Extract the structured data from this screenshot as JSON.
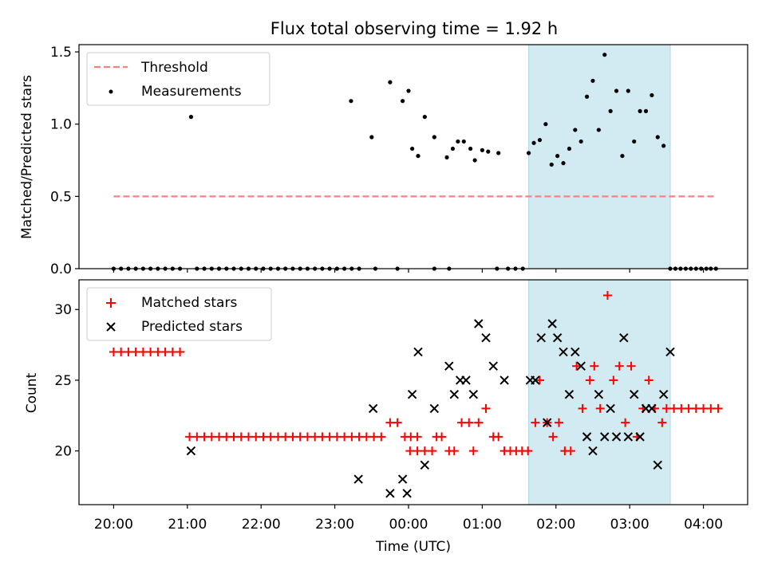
{
  "figure_title": "Flux total observing time = 1.92 h",
  "colors": {
    "threshold": "#ff7f7f",
    "measurements": "#000000",
    "matched": "#ff0000",
    "predicted": "#000000",
    "highlight": "#add8e6"
  },
  "chart_data": [
    {
      "type": "scatter",
      "title": "Flux total observing time = 1.92 h",
      "ylabel": "Matched/Predicted stars",
      "xlabel": "",
      "x_unit": "hours since 20:00 UTC",
      "xlim": [
        -0.47,
        8.6
      ],
      "ylim": [
        0,
        1.55
      ],
      "yticks": [
        0.0,
        0.5,
        1.0,
        1.5
      ],
      "ytick_labels": [
        "0.0",
        "0.5",
        "1.0",
        "1.5"
      ],
      "xticks": [
        0,
        1,
        2,
        3,
        4,
        5,
        6,
        7,
        8
      ],
      "highlight_span": [
        5.63,
        7.55
      ],
      "legend": {
        "position": "upper-left",
        "entries": [
          "Threshold",
          "Measurements"
        ]
      },
      "threshold": {
        "name": "Threshold",
        "value": 0.5,
        "x_range": [
          0,
          8.17
        ]
      },
      "series": [
        {
          "name": "Measurements",
          "points": [
            [
              0,
              0
            ],
            [
              0.1,
              0
            ],
            [
              0.2,
              0
            ],
            [
              0.3,
              0
            ],
            [
              0.4,
              0
            ],
            [
              0.5,
              0
            ],
            [
              0.6,
              0
            ],
            [
              0.7,
              0
            ],
            [
              0.8,
              0
            ],
            [
              0.9,
              0
            ],
            [
              1.05,
              1.05
            ],
            [
              1.13,
              0
            ],
            [
              1.23,
              0
            ],
            [
              1.33,
              0
            ],
            [
              1.43,
              0
            ],
            [
              1.53,
              0
            ],
            [
              1.63,
              0
            ],
            [
              1.73,
              0
            ],
            [
              1.83,
              0
            ],
            [
              1.93,
              0
            ],
            [
              2.03,
              0
            ],
            [
              2.13,
              0
            ],
            [
              2.23,
              0
            ],
            [
              2.33,
              0
            ],
            [
              2.43,
              0
            ],
            [
              2.53,
              0
            ],
            [
              2.63,
              0
            ],
            [
              2.73,
              0
            ],
            [
              2.83,
              0
            ],
            [
              2.93,
              0
            ],
            [
              3.03,
              0
            ],
            [
              3.13,
              0
            ],
            [
              3.23,
              0
            ],
            [
              3.33,
              0
            ],
            [
              3.22,
              1.16
            ],
            [
              3.5,
              0.91
            ],
            [
              3.75,
              1.29
            ],
            [
              3.92,
              1.16
            ],
            [
              4.0,
              1.23
            ],
            [
              4.05,
              0.83
            ],
            [
              4.13,
              0.78
            ],
            [
              4.22,
              1.05
            ],
            [
              4.35,
              0.91
            ],
            [
              4.52,
              0.77
            ],
            [
              4.6,
              0.83
            ],
            [
              4.67,
              0.88
            ],
            [
              4.75,
              0.88
            ],
            [
              4.84,
              0.83
            ],
            [
              4.9,
              0.75
            ],
            [
              5.0,
              0.82
            ],
            [
              5.08,
              0.81
            ],
            [
              5.22,
              0.8
            ],
            [
              5.63,
              0.8
            ],
            [
              5.7,
              0.87
            ],
            [
              5.78,
              0.89
            ],
            [
              5.86,
              1.0
            ],
            [
              5.94,
              0.72
            ],
            [
              6.02,
              0.78
            ],
            [
              6.1,
              0.73
            ],
            [
              6.18,
              0.83
            ],
            [
              6.26,
              0.96
            ],
            [
              6.34,
              0.88
            ],
            [
              6.42,
              1.19
            ],
            [
              6.5,
              1.3
            ],
            [
              6.58,
              0.96
            ],
            [
              6.66,
              1.48
            ],
            [
              6.74,
              1.09
            ],
            [
              6.82,
              1.23
            ],
            [
              6.9,
              0.78
            ],
            [
              6.98,
              1.23
            ],
            [
              7.06,
              0.88
            ],
            [
              7.14,
              1.09
            ],
            [
              7.22,
              1.09
            ],
            [
              7.3,
              1.2
            ],
            [
              7.38,
              0.91
            ],
            [
              7.46,
              0.85
            ],
            [
              3.55,
              0
            ],
            [
              3.85,
              0
            ],
            [
              4.35,
              0
            ],
            [
              4.55,
              0
            ],
            [
              5.2,
              0
            ],
            [
              5.35,
              0
            ],
            [
              5.45,
              0
            ],
            [
              5.55,
              0
            ],
            [
              7.55,
              0
            ],
            [
              7.62,
              0
            ],
            [
              7.69,
              0
            ],
            [
              7.76,
              0
            ],
            [
              7.83,
              0
            ],
            [
              7.9,
              0
            ],
            [
              7.97,
              0
            ],
            [
              8.04,
              0
            ],
            [
              8.1,
              0
            ],
            [
              8.17,
              0
            ]
          ]
        }
      ]
    },
    {
      "type": "scatter",
      "title": "",
      "ylabel": "Count",
      "xlabel": "Time (UTC)",
      "x_unit": "hours since 20:00 UTC",
      "xlim": [
        -0.47,
        8.6
      ],
      "ylim": [
        16.2,
        32.1
      ],
      "yticks": [
        20,
        25,
        30
      ],
      "ytick_labels": [
        "20",
        "25",
        "30"
      ],
      "xticks": [
        0,
        1,
        2,
        3,
        4,
        5,
        6,
        7,
        8
      ],
      "xtick_labels": [
        "20:00",
        "21:00",
        "22:00",
        "23:00",
        "00:00",
        "01:00",
        "02:00",
        "03:00",
        "04:00"
      ],
      "highlight_span": [
        5.63,
        7.55
      ],
      "legend": {
        "position": "upper-left",
        "entries": [
          "Matched stars",
          "Predicted stars"
        ]
      },
      "series": [
        {
          "name": "Matched stars",
          "marker": "+",
          "points": [
            [
              0,
              27
            ],
            [
              0.1,
              27
            ],
            [
              0.2,
              27
            ],
            [
              0.3,
              27
            ],
            [
              0.4,
              27
            ],
            [
              0.5,
              27
            ],
            [
              0.6,
              27
            ],
            [
              0.7,
              27
            ],
            [
              0.8,
              27
            ],
            [
              0.9,
              27
            ],
            [
              1.03,
              21
            ],
            [
              1.13,
              21
            ],
            [
              1.23,
              21
            ],
            [
              1.33,
              21
            ],
            [
              1.43,
              21
            ],
            [
              1.53,
              21
            ],
            [
              1.63,
              21
            ],
            [
              1.73,
              21
            ],
            [
              1.83,
              21
            ],
            [
              1.93,
              21
            ],
            [
              2.03,
              21
            ],
            [
              2.13,
              21
            ],
            [
              2.23,
              21
            ],
            [
              2.33,
              21
            ],
            [
              2.43,
              21
            ],
            [
              2.53,
              21
            ],
            [
              2.63,
              21
            ],
            [
              2.73,
              21
            ],
            [
              2.83,
              21
            ],
            [
              2.93,
              21
            ],
            [
              3.03,
              21
            ],
            [
              3.13,
              21
            ],
            [
              3.23,
              21
            ],
            [
              3.33,
              21
            ],
            [
              3.43,
              21
            ],
            [
              3.53,
              21
            ],
            [
              3.63,
              21
            ],
            [
              3.75,
              22
            ],
            [
              3.85,
              22
            ],
            [
              3.95,
              21
            ],
            [
              4.03,
              21
            ],
            [
              4.02,
              20
            ],
            [
              4.12,
              21
            ],
            [
              4.12,
              20
            ],
            [
              4.22,
              20
            ],
            [
              4.32,
              20
            ],
            [
              4.38,
              21
            ],
            [
              4.45,
              21
            ],
            [
              4.55,
              20
            ],
            [
              4.62,
              20
            ],
            [
              4.72,
              22
            ],
            [
              4.82,
              22
            ],
            [
              4.88,
              20
            ],
            [
              4.95,
              22
            ],
            [
              5.05,
              23
            ],
            [
              5.15,
              21
            ],
            [
              5.22,
              21
            ],
            [
              5.3,
              20
            ],
            [
              5.38,
              20
            ],
            [
              5.46,
              20
            ],
            [
              5.54,
              20
            ],
            [
              5.62,
              20
            ],
            [
              5.72,
              22
            ],
            [
              5.78,
              25
            ],
            [
              5.88,
              22
            ],
            [
              5.96,
              21
            ],
            [
              6.04,
              22
            ],
            [
              6.12,
              20
            ],
            [
              6.2,
              20
            ],
            [
              6.28,
              26
            ],
            [
              6.36,
              23
            ],
            [
              6.46,
              25
            ],
            [
              6.52,
              26
            ],
            [
              6.6,
              23
            ],
            [
              6.7,
              31
            ],
            [
              6.78,
              25
            ],
            [
              6.86,
              26
            ],
            [
              6.94,
              22
            ],
            [
              7.02,
              26
            ],
            [
              7.1,
              21
            ],
            [
              7.18,
              23
            ],
            [
              7.26,
              25
            ],
            [
              7.34,
              23
            ],
            [
              7.44,
              22
            ],
            [
              7.5,
              23
            ],
            [
              7.6,
              23
            ],
            [
              7.7,
              23
            ],
            [
              7.8,
              23
            ],
            [
              7.9,
              23
            ],
            [
              8.0,
              23
            ],
            [
              8.1,
              23
            ],
            [
              8.2,
              23
            ]
          ]
        },
        {
          "name": "Predicted stars",
          "marker": "x",
          "points": [
            [
              1.05,
              20
            ],
            [
              3.32,
              18
            ],
            [
              3.52,
              23
            ],
            [
              3.75,
              17
            ],
            [
              3.92,
              18
            ],
            [
              3.98,
              17
            ],
            [
              4.05,
              24
            ],
            [
              4.13,
              27
            ],
            [
              4.22,
              19
            ],
            [
              4.35,
              23
            ],
            [
              4.55,
              26
            ],
            [
              4.62,
              24
            ],
            [
              4.7,
              25
            ],
            [
              4.78,
              25
            ],
            [
              4.88,
              24
            ],
            [
              4.95,
              29
            ],
            [
              5.05,
              28
            ],
            [
              5.15,
              26
            ],
            [
              5.3,
              25
            ],
            [
              5.65,
              25
            ],
            [
              5.72,
              25
            ],
            [
              5.8,
              28
            ],
            [
              5.88,
              22
            ],
            [
              5.95,
              29
            ],
            [
              6.02,
              28
            ],
            [
              6.1,
              27
            ],
            [
              6.18,
              24
            ],
            [
              6.26,
              27
            ],
            [
              6.34,
              26
            ],
            [
              6.42,
              21
            ],
            [
              6.5,
              20
            ],
            [
              6.58,
              24
            ],
            [
              6.66,
              21
            ],
            [
              6.74,
              23
            ],
            [
              6.82,
              21
            ],
            [
              6.92,
              28
            ],
            [
              6.98,
              21
            ],
            [
              7.06,
              24
            ],
            [
              7.14,
              21
            ],
            [
              7.22,
              23
            ],
            [
              7.3,
              23
            ],
            [
              7.38,
              19
            ],
            [
              7.46,
              24
            ],
            [
              7.55,
              27
            ]
          ]
        }
      ]
    }
  ]
}
